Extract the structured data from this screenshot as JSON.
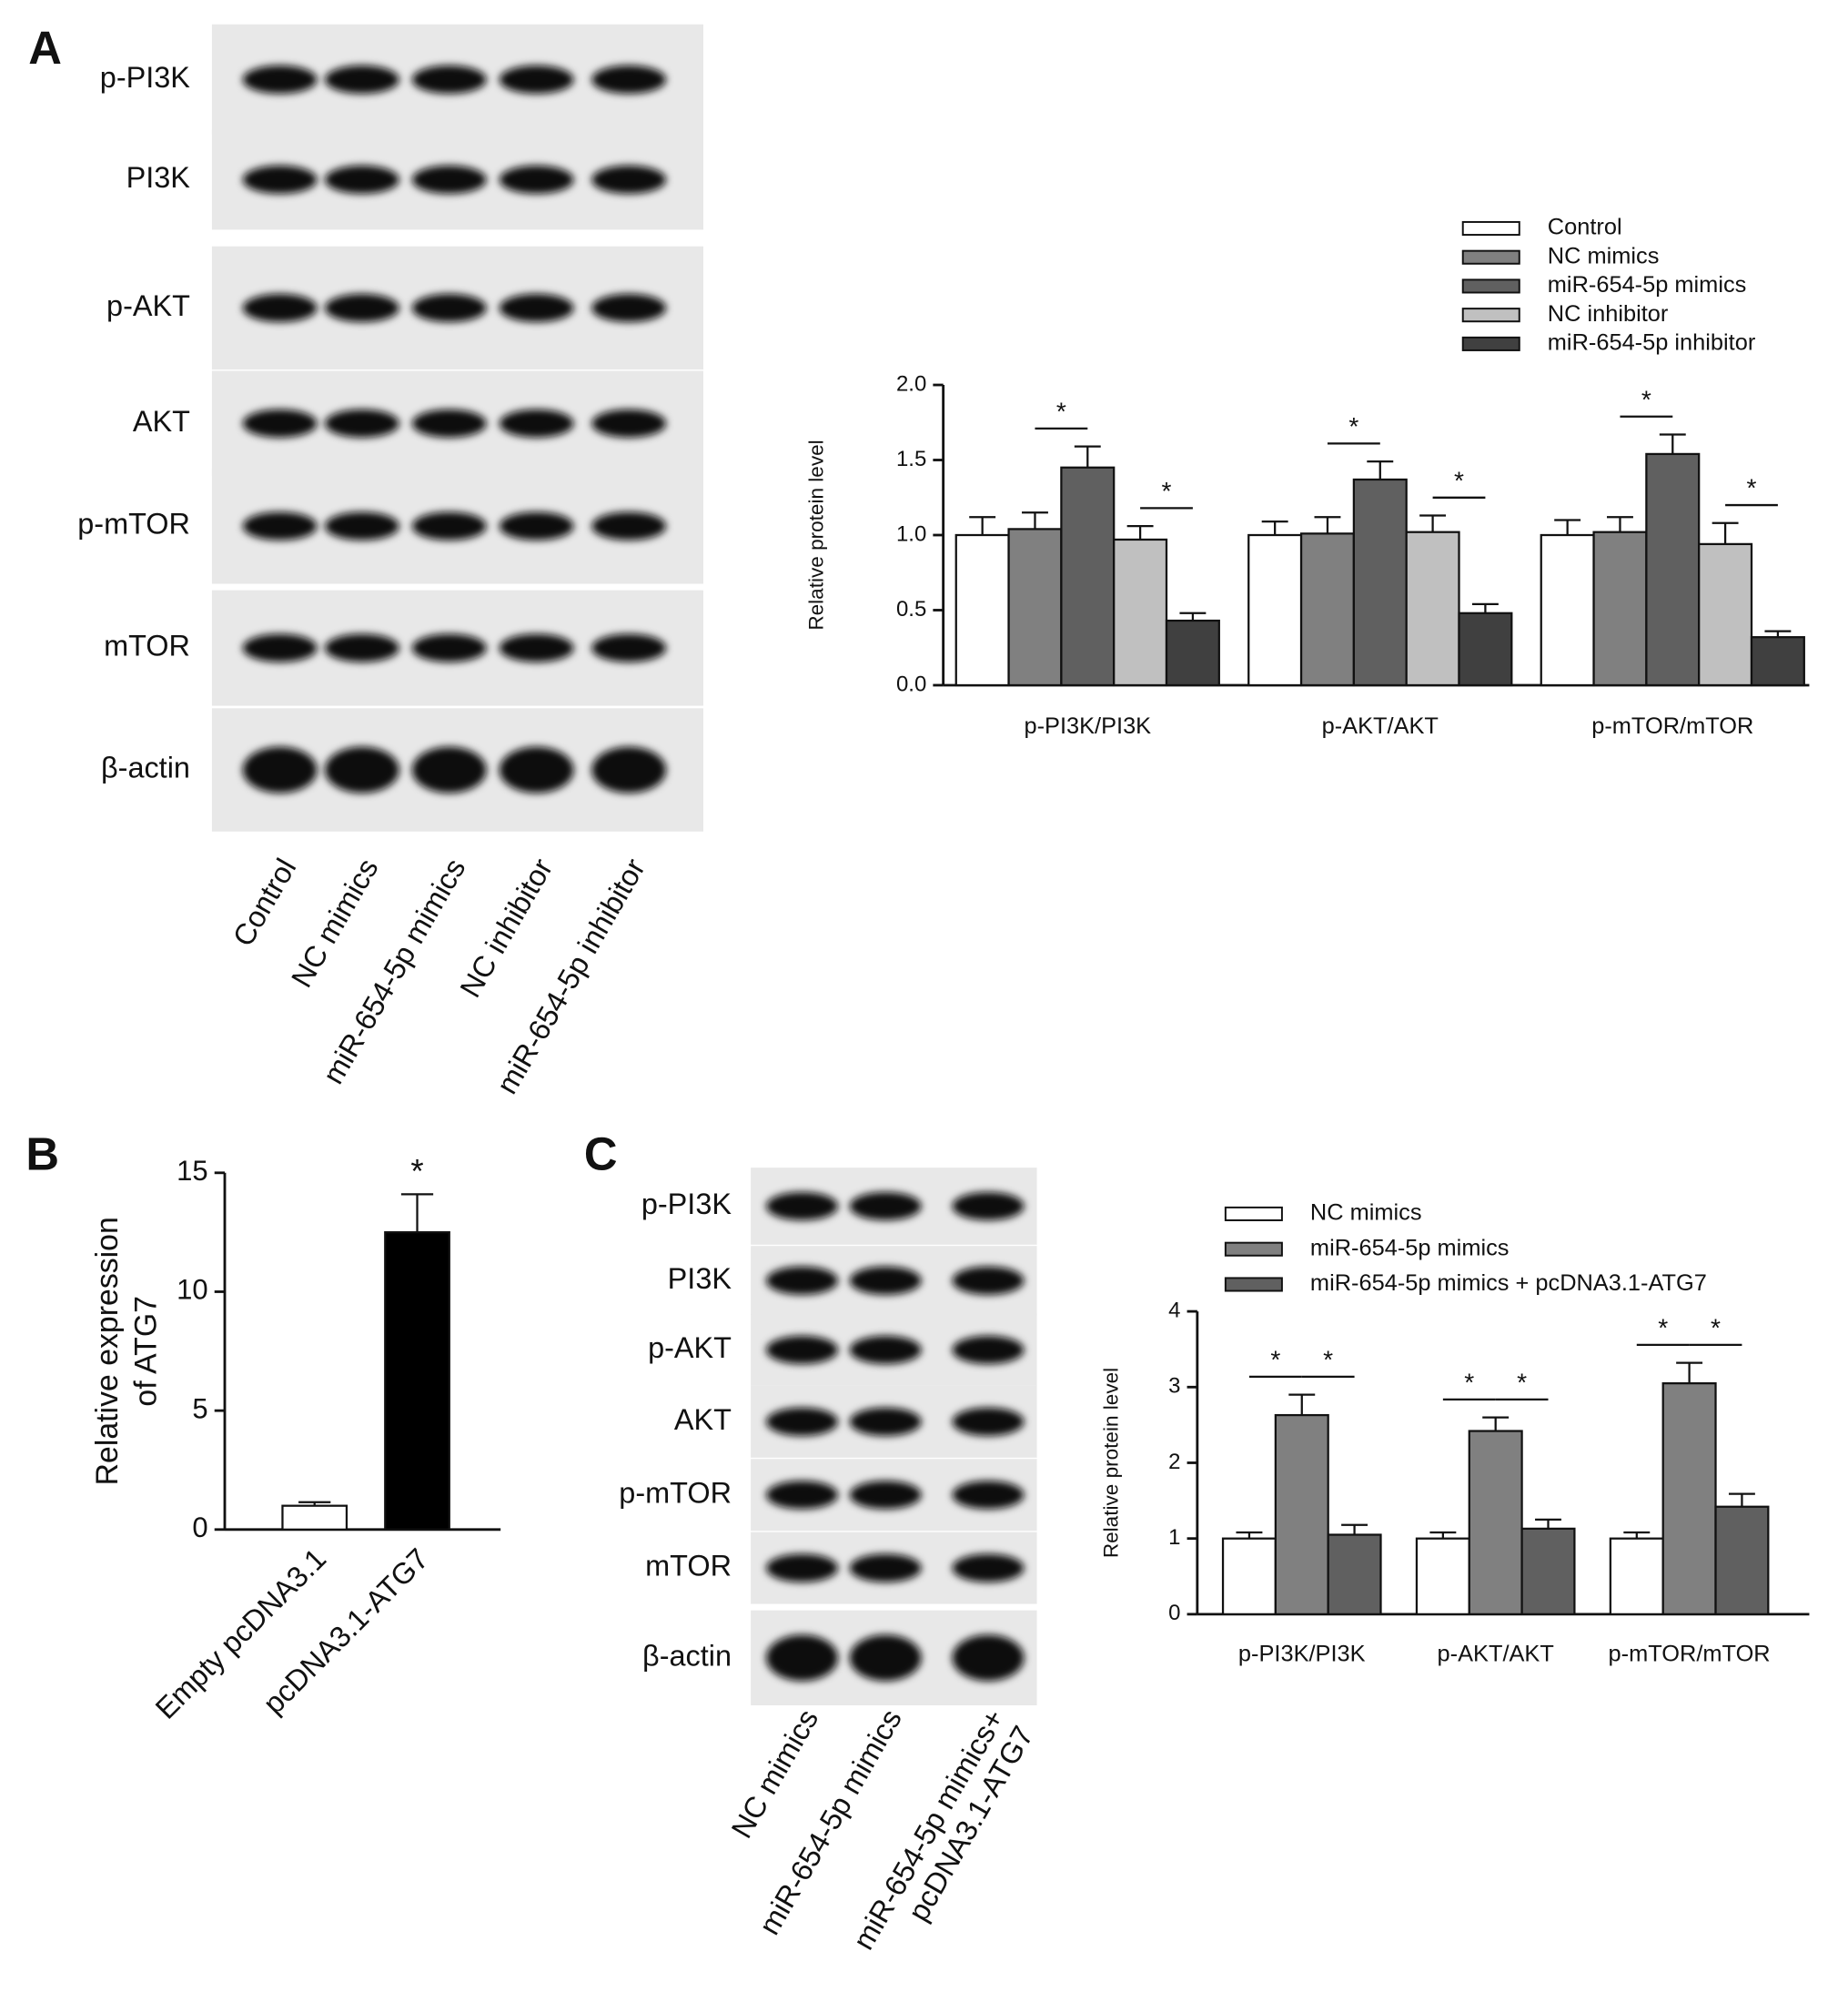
{
  "panel_labels": [
    "A",
    "B",
    "C"
  ],
  "blots": [
    {
      "rows": [
        "p-PI3K",
        "PI3K",
        "p-AKT",
        "AKT",
        "p-mTOR",
        "mTOR",
        "β-actin"
      ],
      "lanes": [
        [
          "Control"
        ],
        [
          "NC mimics"
        ],
        [
          "miR-654-5p mimics"
        ],
        [
          "NC inhibitor"
        ],
        [
          "miR-654-5p inhibitor"
        ]
      ]
    },
    {
      "rows": [
        "p-PI3K",
        "PI3K",
        "p-AKT",
        "AKT",
        "p-mTOR",
        "mTOR",
        "β-actin"
      ],
      "lanes": [
        [
          "NC mimics"
        ],
        [
          "miR-654-5p mimics"
        ],
        [
          "miR-654-5p mimics+",
          "pcDNA3.1-ATG7"
        ]
      ]
    }
  ],
  "chart_data": [
    {
      "type": "bar",
      "y_label": "Relative protein level",
      "categories": [
        "p-PI3K/PI3K",
        "p-AKT/AKT",
        "p-mTOR/mTOR"
      ],
      "series": [
        {
          "name": "Control",
          "color": "#ffffff",
          "values": [
            1.0,
            1.0,
            1.0
          ],
          "errors": [
            0.12,
            0.09,
            0.1
          ]
        },
        {
          "name": "NC mimics",
          "color": "#808080",
          "values": [
            1.04,
            1.01,
            1.02
          ],
          "errors": [
            0.11,
            0.11,
            0.1
          ]
        },
        {
          "name": "miR-654-5p mimics",
          "color": "#606060",
          "values": [
            1.45,
            1.37,
            1.54
          ],
          "errors": [
            0.14,
            0.12,
            0.13
          ]
        },
        {
          "name": "NC inhibitor",
          "color": "#c0c0c0",
          "values": [
            0.97,
            1.02,
            0.94
          ],
          "errors": [
            0.09,
            0.11,
            0.14
          ]
        },
        {
          "name": "miR-654-5p inhibitor",
          "color": "#404040",
          "values": [
            0.43,
            0.48,
            0.32
          ],
          "errors": [
            0.05,
            0.06,
            0.04
          ]
        }
      ],
      "ylim": [
        0,
        2
      ],
      "yticks": [
        {
          "value": 0,
          "label": "0.0"
        },
        0.5,
        {
          "value": 1,
          "label": "1.0"
        },
        1.5,
        {
          "value": 2,
          "label": "2.0"
        }
      ],
      "significance": {
        "label": "*",
        "pairs": [
          [
            "NC mimics",
            "miR-654-5p mimics"
          ],
          [
            "NC inhibitor",
            "miR-654-5p inhibitor"
          ]
        ]
      }
    },
    {
      "type": "bar",
      "y_label": [
        "Relative expression",
        "of ATG7"
      ],
      "categories": [
        "Empty pcDNA3.1",
        "pcDNA3.1-ATG7"
      ],
      "values": [
        1.0,
        12.5
      ],
      "errors": [
        0.15,
        1.6
      ],
      "colors": [
        "#ffffff",
        "#000000"
      ],
      "ylim": [
        0,
        15
      ],
      "yticks": [
        0,
        5,
        10,
        15
      ],
      "significance": {
        "label": "*",
        "categories": [
          "pcDNA3.1-ATG7"
        ]
      }
    },
    {
      "type": "bar",
      "y_label": "Relative protein level",
      "categories": [
        "p-PI3K/PI3K",
        "p-AKT/AKT",
        "p-mTOR/mTOR"
      ],
      "series": [
        {
          "name": "NC mimics",
          "color": "#ffffff",
          "values": [
            1.0,
            1.0,
            1.0
          ],
          "errors": [
            0.08,
            0.08,
            0.08
          ]
        },
        {
          "name": "miR-654-5p mimics",
          "color": "#808080",
          "values": [
            2.63,
            2.42,
            3.05
          ],
          "errors": [
            0.27,
            0.18,
            0.27
          ]
        },
        {
          "name": "miR-654-5p mimics + pcDNA3.1-ATG7",
          "color": "#606060",
          "values": [
            1.05,
            1.13,
            1.42
          ],
          "errors": [
            0.13,
            0.12,
            0.17
          ]
        }
      ],
      "ylim": [
        0,
        4
      ],
      "yticks": [
        0,
        1,
        2,
        3,
        4
      ],
      "significance": {
        "label": "*",
        "pairs": [
          [
            "NC mimics",
            "miR-654-5p mimics"
          ],
          [
            "miR-654-5p mimics",
            "miR-654-5p mimics + pcDNA3.1-ATG7"
          ]
        ]
      }
    }
  ]
}
